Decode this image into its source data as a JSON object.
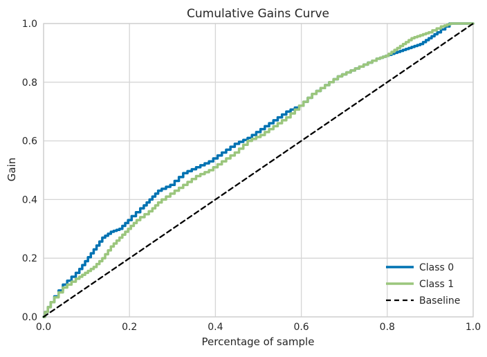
{
  "chart_data": {
    "type": "line",
    "title": "Cumulative Gains Curve",
    "xlabel": "Percentage of sample",
    "ylabel": "Gain",
    "xlim": [
      0,
      1
    ],
    "ylim": [
      0,
      1
    ],
    "xticks": [
      0.0,
      0.2,
      0.4,
      0.6,
      0.8,
      1.0
    ],
    "yticks": [
      0.0,
      0.2,
      0.4,
      0.6,
      0.8,
      1.0
    ],
    "xtick_labels": [
      "0.0",
      "0.2",
      "0.4",
      "0.6",
      "0.8",
      "1.0"
    ],
    "ytick_labels": [
      "0.0",
      "0.2",
      "0.4",
      "0.6",
      "0.8",
      "1.0"
    ],
    "grid": true,
    "legend_position": "lower-right",
    "series": [
      {
        "name": "Class 0",
        "color": "#0072B2",
        "style": "solid",
        "x": [
          0,
          0.02,
          0.05,
          0.08,
          0.1,
          0.12,
          0.14,
          0.16,
          0.18,
          0.2,
          0.23,
          0.25,
          0.27,
          0.3,
          0.33,
          0.36,
          0.39,
          0.42,
          0.45,
          0.48,
          0.51,
          0.54,
          0.57,
          0.6,
          0.63,
          0.66,
          0.69,
          0.72,
          0.75,
          0.78,
          0.8,
          0.82,
          0.84,
          0.86,
          0.88,
          0.9,
          0.92,
          0.95,
          1.0
        ],
        "y": [
          0,
          0.05,
          0.11,
          0.15,
          0.19,
          0.23,
          0.27,
          0.29,
          0.3,
          0.33,
          0.37,
          0.4,
          0.43,
          0.45,
          0.49,
          0.51,
          0.53,
          0.56,
          0.59,
          0.61,
          0.64,
          0.67,
          0.7,
          0.72,
          0.76,
          0.79,
          0.82,
          0.84,
          0.86,
          0.88,
          0.89,
          0.9,
          0.91,
          0.92,
          0.93,
          0.95,
          0.97,
          1.0,
          1.0
        ]
      },
      {
        "name": "Class 1",
        "color": "#9BC67D",
        "style": "solid",
        "x": [
          0,
          0.02,
          0.05,
          0.08,
          0.1,
          0.12,
          0.14,
          0.16,
          0.18,
          0.2,
          0.22,
          0.25,
          0.27,
          0.3,
          0.33,
          0.36,
          0.39,
          0.42,
          0.45,
          0.48,
          0.51,
          0.54,
          0.57,
          0.6,
          0.63,
          0.66,
          0.69,
          0.72,
          0.75,
          0.78,
          0.8,
          0.82,
          0.84,
          0.86,
          0.88,
          0.9,
          0.93,
          0.95,
          1.0
        ],
        "y": [
          0,
          0.05,
          0.1,
          0.13,
          0.15,
          0.17,
          0.2,
          0.24,
          0.27,
          0.3,
          0.33,
          0.36,
          0.39,
          0.42,
          0.45,
          0.48,
          0.5,
          0.53,
          0.56,
          0.6,
          0.62,
          0.65,
          0.68,
          0.72,
          0.76,
          0.79,
          0.82,
          0.84,
          0.86,
          0.88,
          0.89,
          0.91,
          0.93,
          0.95,
          0.96,
          0.97,
          0.99,
          1.0,
          1.0
        ]
      },
      {
        "name": "Baseline",
        "color": "#000000",
        "style": "dashed",
        "x": [
          0,
          1
        ],
        "y": [
          0,
          1
        ]
      }
    ]
  }
}
